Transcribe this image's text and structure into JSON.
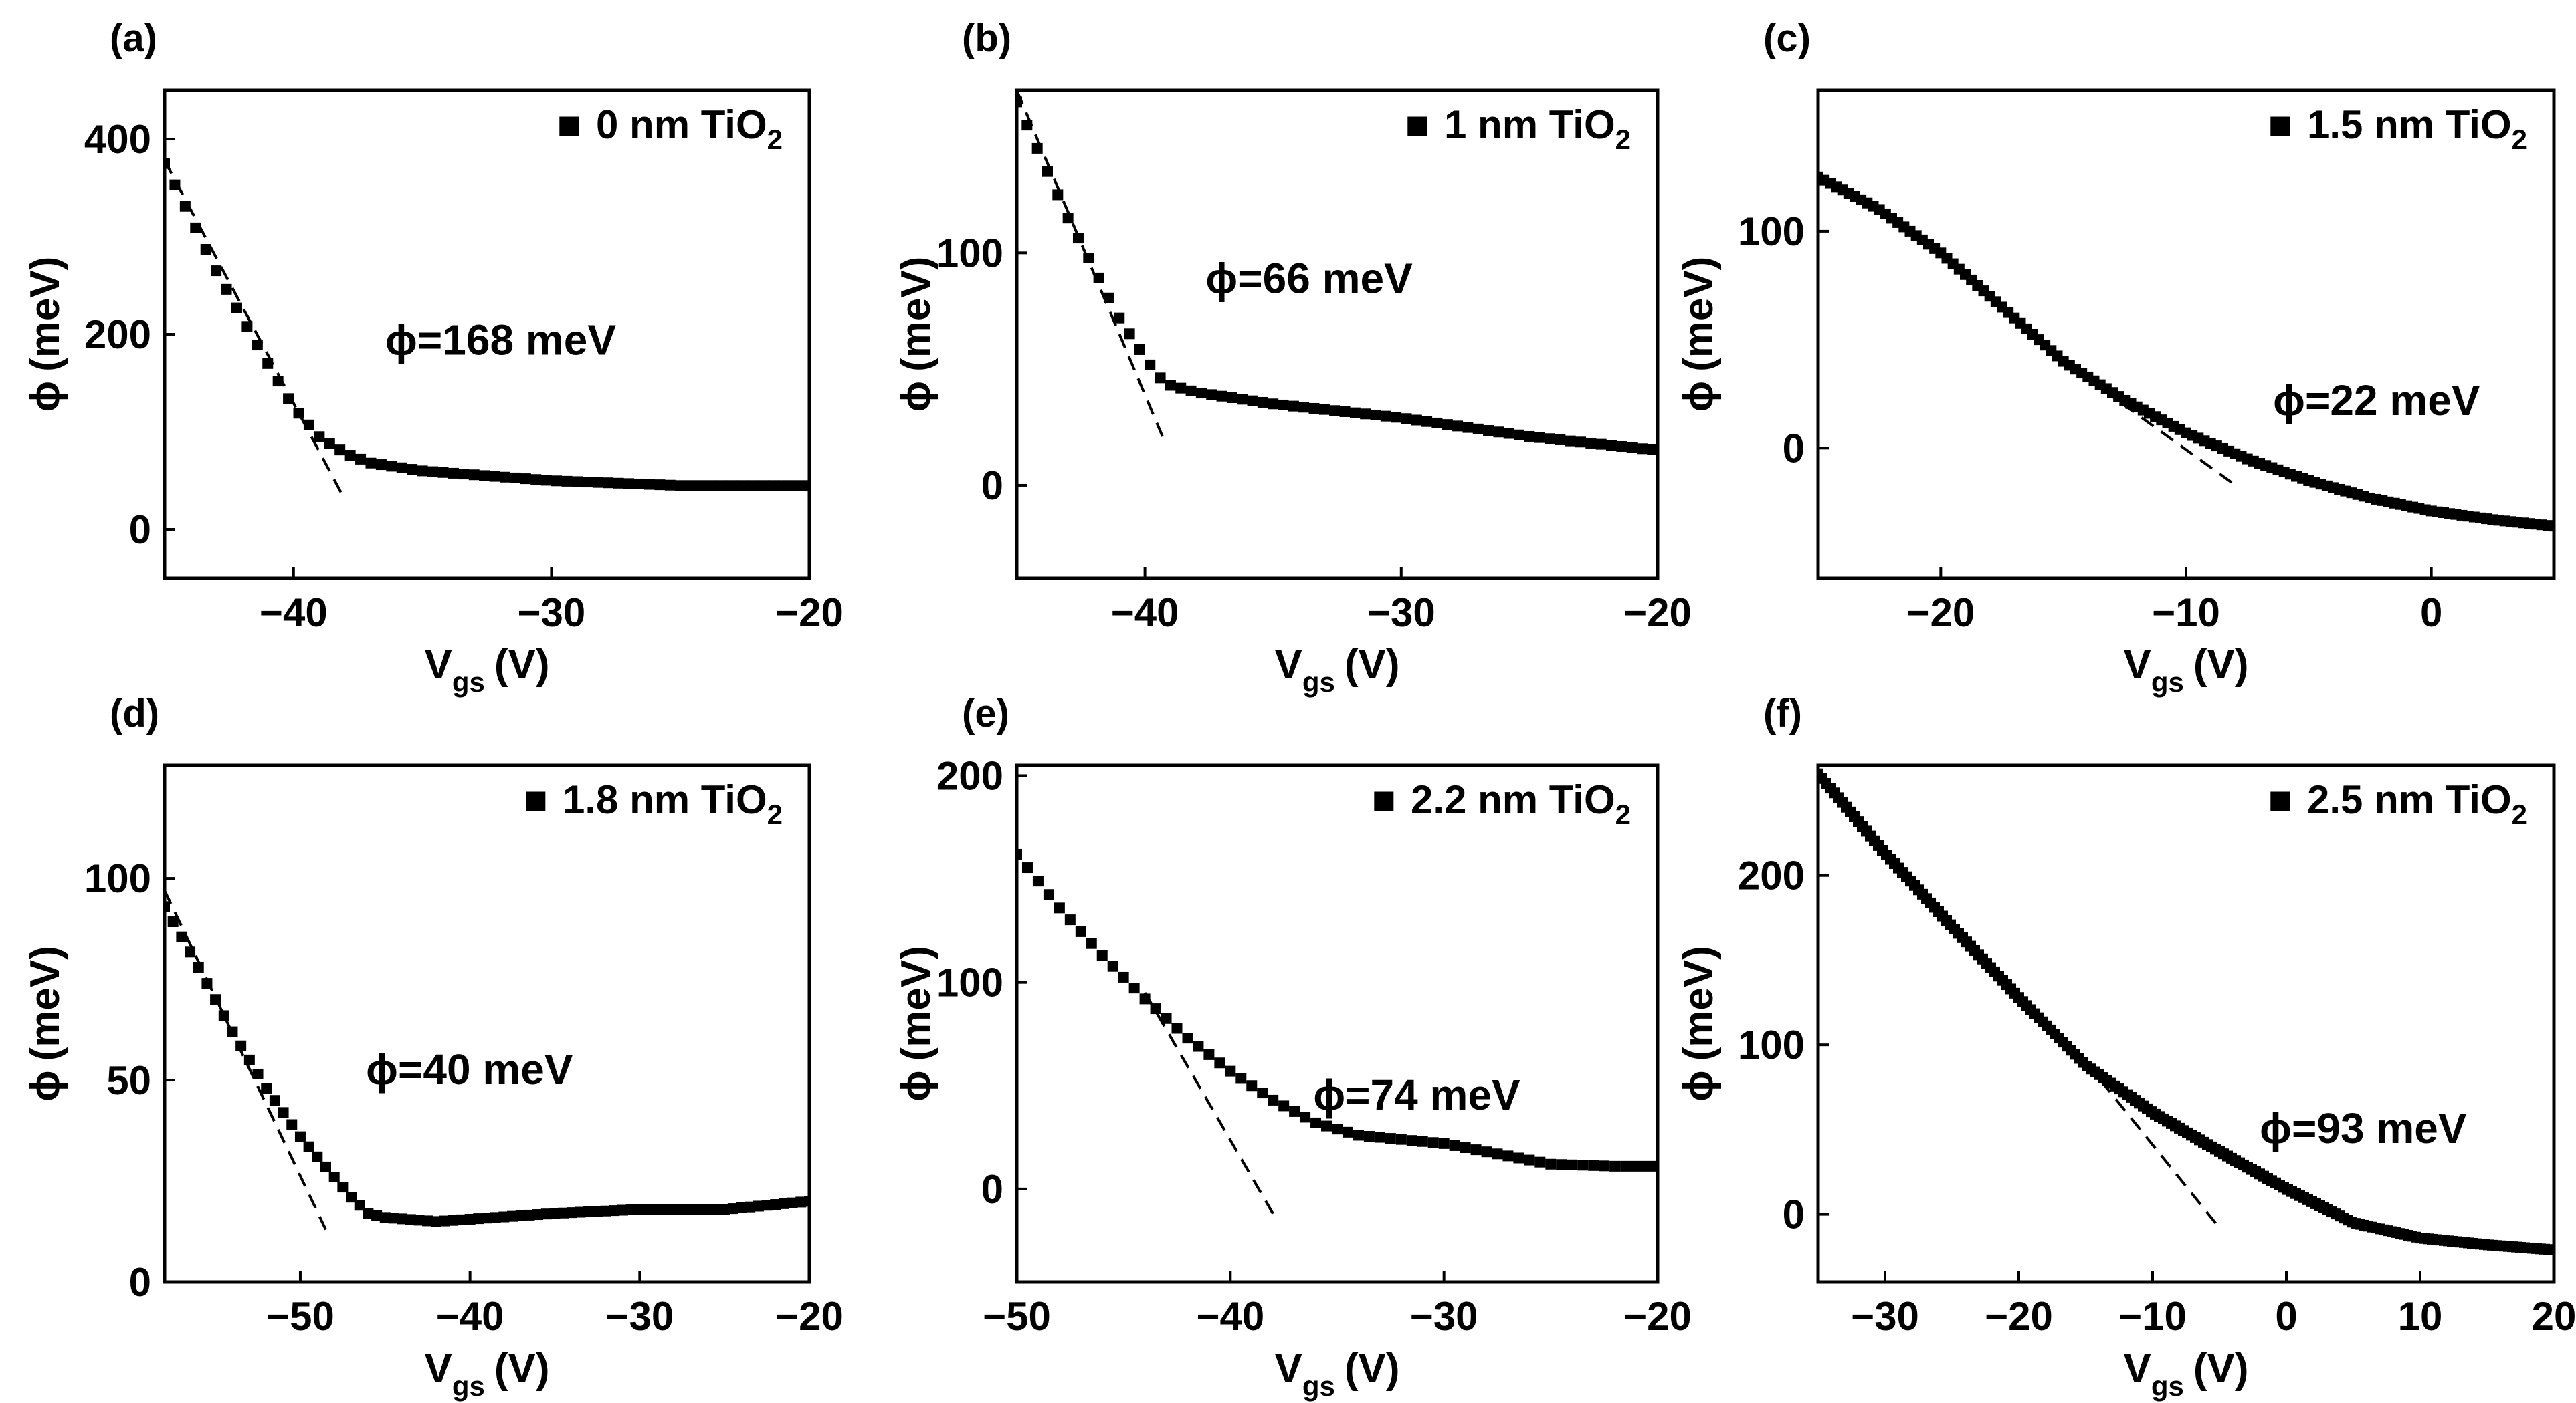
{
  "figure": {
    "background": "#ffffff",
    "ink": "#000000"
  },
  "chart_data": [
    {
      "type": "scatter",
      "panel_label": "(a)",
      "legend": {
        "marker": "■",
        "text": "0 nm TiO",
        "sub": "2",
        "placement": "top-right"
      },
      "xlabel": {
        "main": "V",
        "sub": "gs",
        "unit": "(V)"
      },
      "ylabel": {
        "phi": "ϕ",
        "unit": "(meV)"
      },
      "xlim": [
        -45,
        -20
      ],
      "ylim": [
        -50,
        450
      ],
      "xticks": [
        -40,
        -30,
        -20
      ],
      "xtick_labels": [
        "−40",
        "−30",
        "−20"
      ],
      "yticks": [
        0,
        200,
        400
      ],
      "ytick_labels": [
        "0",
        "200",
        "400"
      ],
      "annotation": "ϕ=168 meV",
      "curve_x": [
        -45,
        -43,
        -41,
        -40,
        -39,
        -38,
        -37,
        -35,
        -30,
        -25,
        -20
      ],
      "curve_y": [
        375,
        265,
        170,
        125,
        95,
        78,
        68,
        60,
        50,
        45,
        45
      ],
      "point_step": 0.4,
      "fit_line": {
        "x": [
          -45,
          -38
        ],
        "y": [
          378,
          30
        ]
      }
    },
    {
      "type": "scatter",
      "panel_label": "(b)",
      "legend": {
        "marker": "■",
        "text": "1 nm TiO",
        "sub": "2",
        "placement": "top-right"
      },
      "xlabel": {
        "main": "V",
        "sub": "gs",
        "unit": "(V)"
      },
      "ylabel": {
        "phi": "ϕ",
        "unit": "(meV)"
      },
      "xlim": [
        -45,
        -20
      ],
      "ylim": [
        -40,
        170
      ],
      "xticks": [
        -40,
        -30,
        -20
      ],
      "xtick_labels": [
        "−40",
        "−30",
        "−20"
      ],
      "yticks": [
        0,
        100
      ],
      "ytick_labels": [
        "0",
        "100"
      ],
      "annotation": "ϕ=66 meV",
      "curve_x": [
        -45,
        -43,
        -41,
        -40,
        -39.5,
        -39,
        -38,
        -35,
        -30,
        -25,
        -20
      ],
      "curve_y": [
        165,
        115,
        72,
        55,
        47,
        43,
        40,
        35,
        29,
        21,
        15
      ],
      "point_step": 0.4,
      "fit_line": {
        "x": [
          -45,
          -39.2
        ],
        "y": [
          170,
          18
        ]
      }
    },
    {
      "type": "scatter",
      "panel_label": "(c)",
      "legend": {
        "marker": "■",
        "text": "1.5 nm TiO",
        "sub": "2",
        "placement": "top-right"
      },
      "xlabel": {
        "main": "V",
        "sub": "gs",
        "unit": "(V)"
      },
      "ylabel": {
        "phi": "ϕ",
        "unit": "(meV)"
      },
      "xlim": [
        -25,
        5
      ],
      "ylim": [
        -60,
        165
      ],
      "xticks": [
        -20,
        -10,
        0
      ],
      "xtick_labels": [
        "−20",
        "−10",
        "0"
      ],
      "yticks": [
        0,
        100
      ],
      "ytick_labels": [
        "0",
        "100"
      ],
      "annotation": "ϕ=22 meV",
      "curve_x": [
        -25,
        -22.5,
        -20,
        -17.5,
        -15,
        -12.5,
        -10,
        -7.5,
        -5,
        -2.5,
        0,
        2.5,
        5
      ],
      "curve_y": [
        125,
        110,
        90,
        65,
        40,
        22,
        7,
        -5,
        -15,
        -23,
        -29,
        -33,
        -36
      ],
      "point_step": 0.25,
      "fit_line": {
        "x": [
          -15,
          -8
        ],
        "y": [
          40,
          -17
        ]
      }
    },
    {
      "type": "scatter",
      "panel_label": "(d)",
      "legend": {
        "marker": "■",
        "text": "1.8 nm TiO",
        "sub": "2",
        "placement": "top-right"
      },
      "xlabel": {
        "main": "V",
        "sub": "gs",
        "unit": "(V)"
      },
      "ylabel": {
        "phi": "ϕ",
        "unit": "(meV)"
      },
      "xlim": [
        -58,
        -20
      ],
      "ylim": [
        0,
        128
      ],
      "xticks": [
        -50,
        -40,
        -30,
        -20
      ],
      "xtick_labels": [
        "−50",
        "−40",
        "−30",
        "−20"
      ],
      "yticks": [
        0,
        50,
        100
      ],
      "ytick_labels": [
        "0",
        "50",
        "100"
      ],
      "annotation": "ϕ=40 meV",
      "curve_x": [
        -58,
        -56,
        -54,
        -52,
        -50,
        -48,
        -47,
        -46,
        -45,
        -42,
        -35,
        -30,
        -25,
        -20
      ],
      "curve_y": [
        93,
        78,
        62,
        48,
        36,
        26,
        21,
        17,
        16,
        15,
        17,
        18,
        18,
        20
      ],
      "point_step": 0.5,
      "fit_line": {
        "x": [
          -58,
          -48.5
        ],
        "y": [
          97,
          13
        ]
      }
    },
    {
      "type": "scatter",
      "panel_label": "(e)",
      "legend": {
        "marker": "■",
        "text": "2.2 nm TiO",
        "sub": "2",
        "placement": "top-right"
      },
      "xlabel": {
        "main": "V",
        "sub": "gs",
        "unit": "(V)"
      },
      "ylabel": {
        "phi": "ϕ",
        "unit": "(meV)"
      },
      "xlim": [
        -50,
        -20
      ],
      "ylim": [
        -45,
        205
      ],
      "xticks": [
        -50,
        -40,
        -30,
        -20
      ],
      "xtick_labels": [
        "−50",
        "−40",
        "−30",
        "−20"
      ],
      "yticks": [
        0,
        100,
        200
      ],
      "ytick_labels": [
        "0",
        "100",
        "200"
      ],
      "annotation": "ϕ=74 meV",
      "curve_x": [
        -50,
        -48,
        -46,
        -44,
        -42,
        -40,
        -38,
        -36,
        -34,
        -30,
        -25,
        -22,
        -20
      ],
      "curve_y": [
        162,
        136,
        113,
        92,
        73,
        57,
        43,
        32,
        26,
        22,
        12,
        11,
        11
      ],
      "point_step": 0.5,
      "fit_line": {
        "x": [
          -44,
          -38
        ],
        "y": [
          95,
          -12
        ]
      }
    },
    {
      "type": "scatter",
      "panel_label": "(f)",
      "legend": {
        "marker": "■",
        "text": "2.5 nm TiO",
        "sub": "2",
        "placement": "top-right"
      },
      "xlabel": {
        "main": "V",
        "sub": "gs",
        "unit": "(V)"
      },
      "ylabel": {
        "phi": "ϕ",
        "unit": "(meV)"
      },
      "xlim": [
        -35,
        20
      ],
      "ylim": [
        -40,
        265
      ],
      "xticks": [
        -30,
        -20,
        -10,
        0,
        10,
        20
      ],
      "xtick_labels": [
        "−30",
        "−20",
        "−10",
        "0",
        "10",
        "20"
      ],
      "yticks": [
        0,
        100,
        200
      ],
      "ytick_labels": [
        "0",
        "100",
        "200"
      ],
      "annotation": "ϕ=93 meV",
      "curve_x": [
        -35,
        -30,
        -25,
        -20,
        -15,
        -10,
        -5,
        0,
        5,
        10,
        15,
        20
      ],
      "curve_y": [
        260,
        213,
        170,
        128,
        88,
        60,
        37,
        15,
        -5,
        -14,
        -18,
        -21
      ],
      "point_step": 0.3,
      "fit_line": {
        "x": [
          -15,
          -5
        ],
        "y": [
          90,
          -8
        ]
      }
    }
  ]
}
